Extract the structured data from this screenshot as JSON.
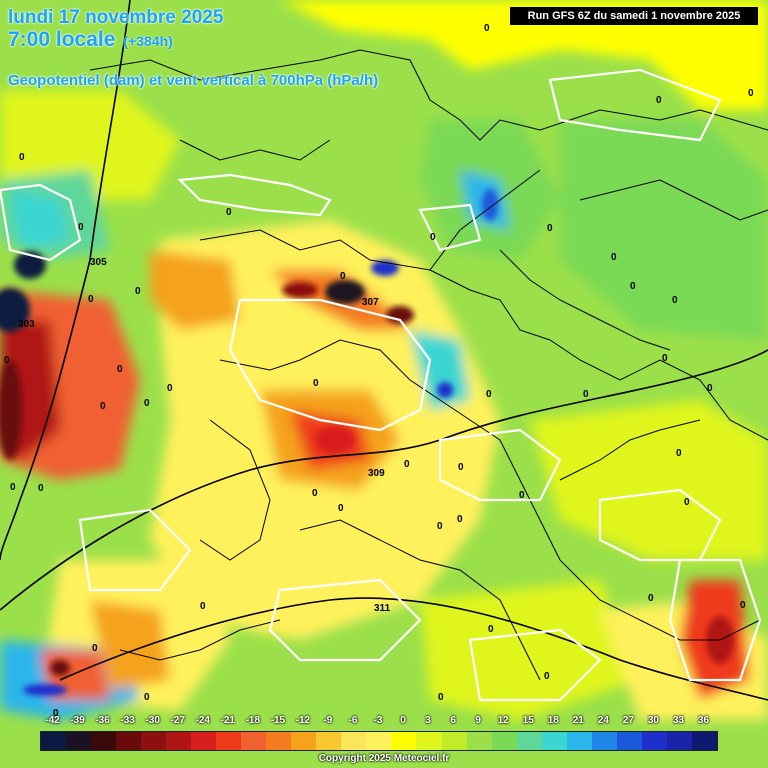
{
  "header": {
    "date": "lundi 17 novembre 2025",
    "time": "7:00 locale",
    "lead": "(+384h)",
    "parameter": "Geopotentiel (dam) et vent vertical à 700hPa (hPa/h)"
  },
  "run_info": "Run GFS 6Z du samedi 1 novembre 2025",
  "copyright": "Copyright 2025 Meteociel.fr",
  "legend": {
    "ticks": [
      "-42",
      "-39",
      "-36",
      "-33",
      "-30",
      "-27",
      "-24",
      "-21",
      "-18",
      "-15",
      "-12",
      "-9",
      "-6",
      "-3",
      "0",
      "3",
      "6",
      "9",
      "12",
      "15",
      "18",
      "21",
      "24",
      "27",
      "30",
      "33",
      "36"
    ],
    "colors": [
      "#0b1a40",
      "#1a1224",
      "#3a0a0a",
      "#6a0b0b",
      "#8c1010",
      "#b01515",
      "#d91e1e",
      "#ee3b1a",
      "#f06030",
      "#f47b20",
      "#f5a21c",
      "#f8c830",
      "#fbe65a",
      "#fff15c",
      "#ffff00",
      "#dff51e",
      "#c0ec2a",
      "#9be04a",
      "#7ad955",
      "#5ed79a",
      "#3bd6d2",
      "#2ab6ea",
      "#1f86e8",
      "#1b59db",
      "#1f2fcc",
      "#1a24a8",
      "#0d1a70"
    ]
  },
  "map_labels": {
    "contours": [
      {
        "text": "305"
      },
      {
        "text": "303"
      },
      {
        "text": "307"
      },
      {
        "text": "309"
      },
      {
        "text": "311"
      }
    ],
    "zero_labels": [
      "0",
      "0",
      "0",
      "0",
      "0",
      "0",
      "0",
      "0",
      "0",
      "0",
      "0",
      "0",
      "0",
      "0",
      "0",
      "0",
      "0",
      "0",
      "0",
      "0",
      "0",
      "0",
      "0",
      "0",
      "0",
      "0",
      "0",
      "0",
      "0",
      "0",
      "0",
      "0",
      "0",
      "0",
      "0",
      "0",
      "0",
      "0",
      "0",
      "0",
      "0",
      "0",
      "0",
      "0"
    ]
  }
}
